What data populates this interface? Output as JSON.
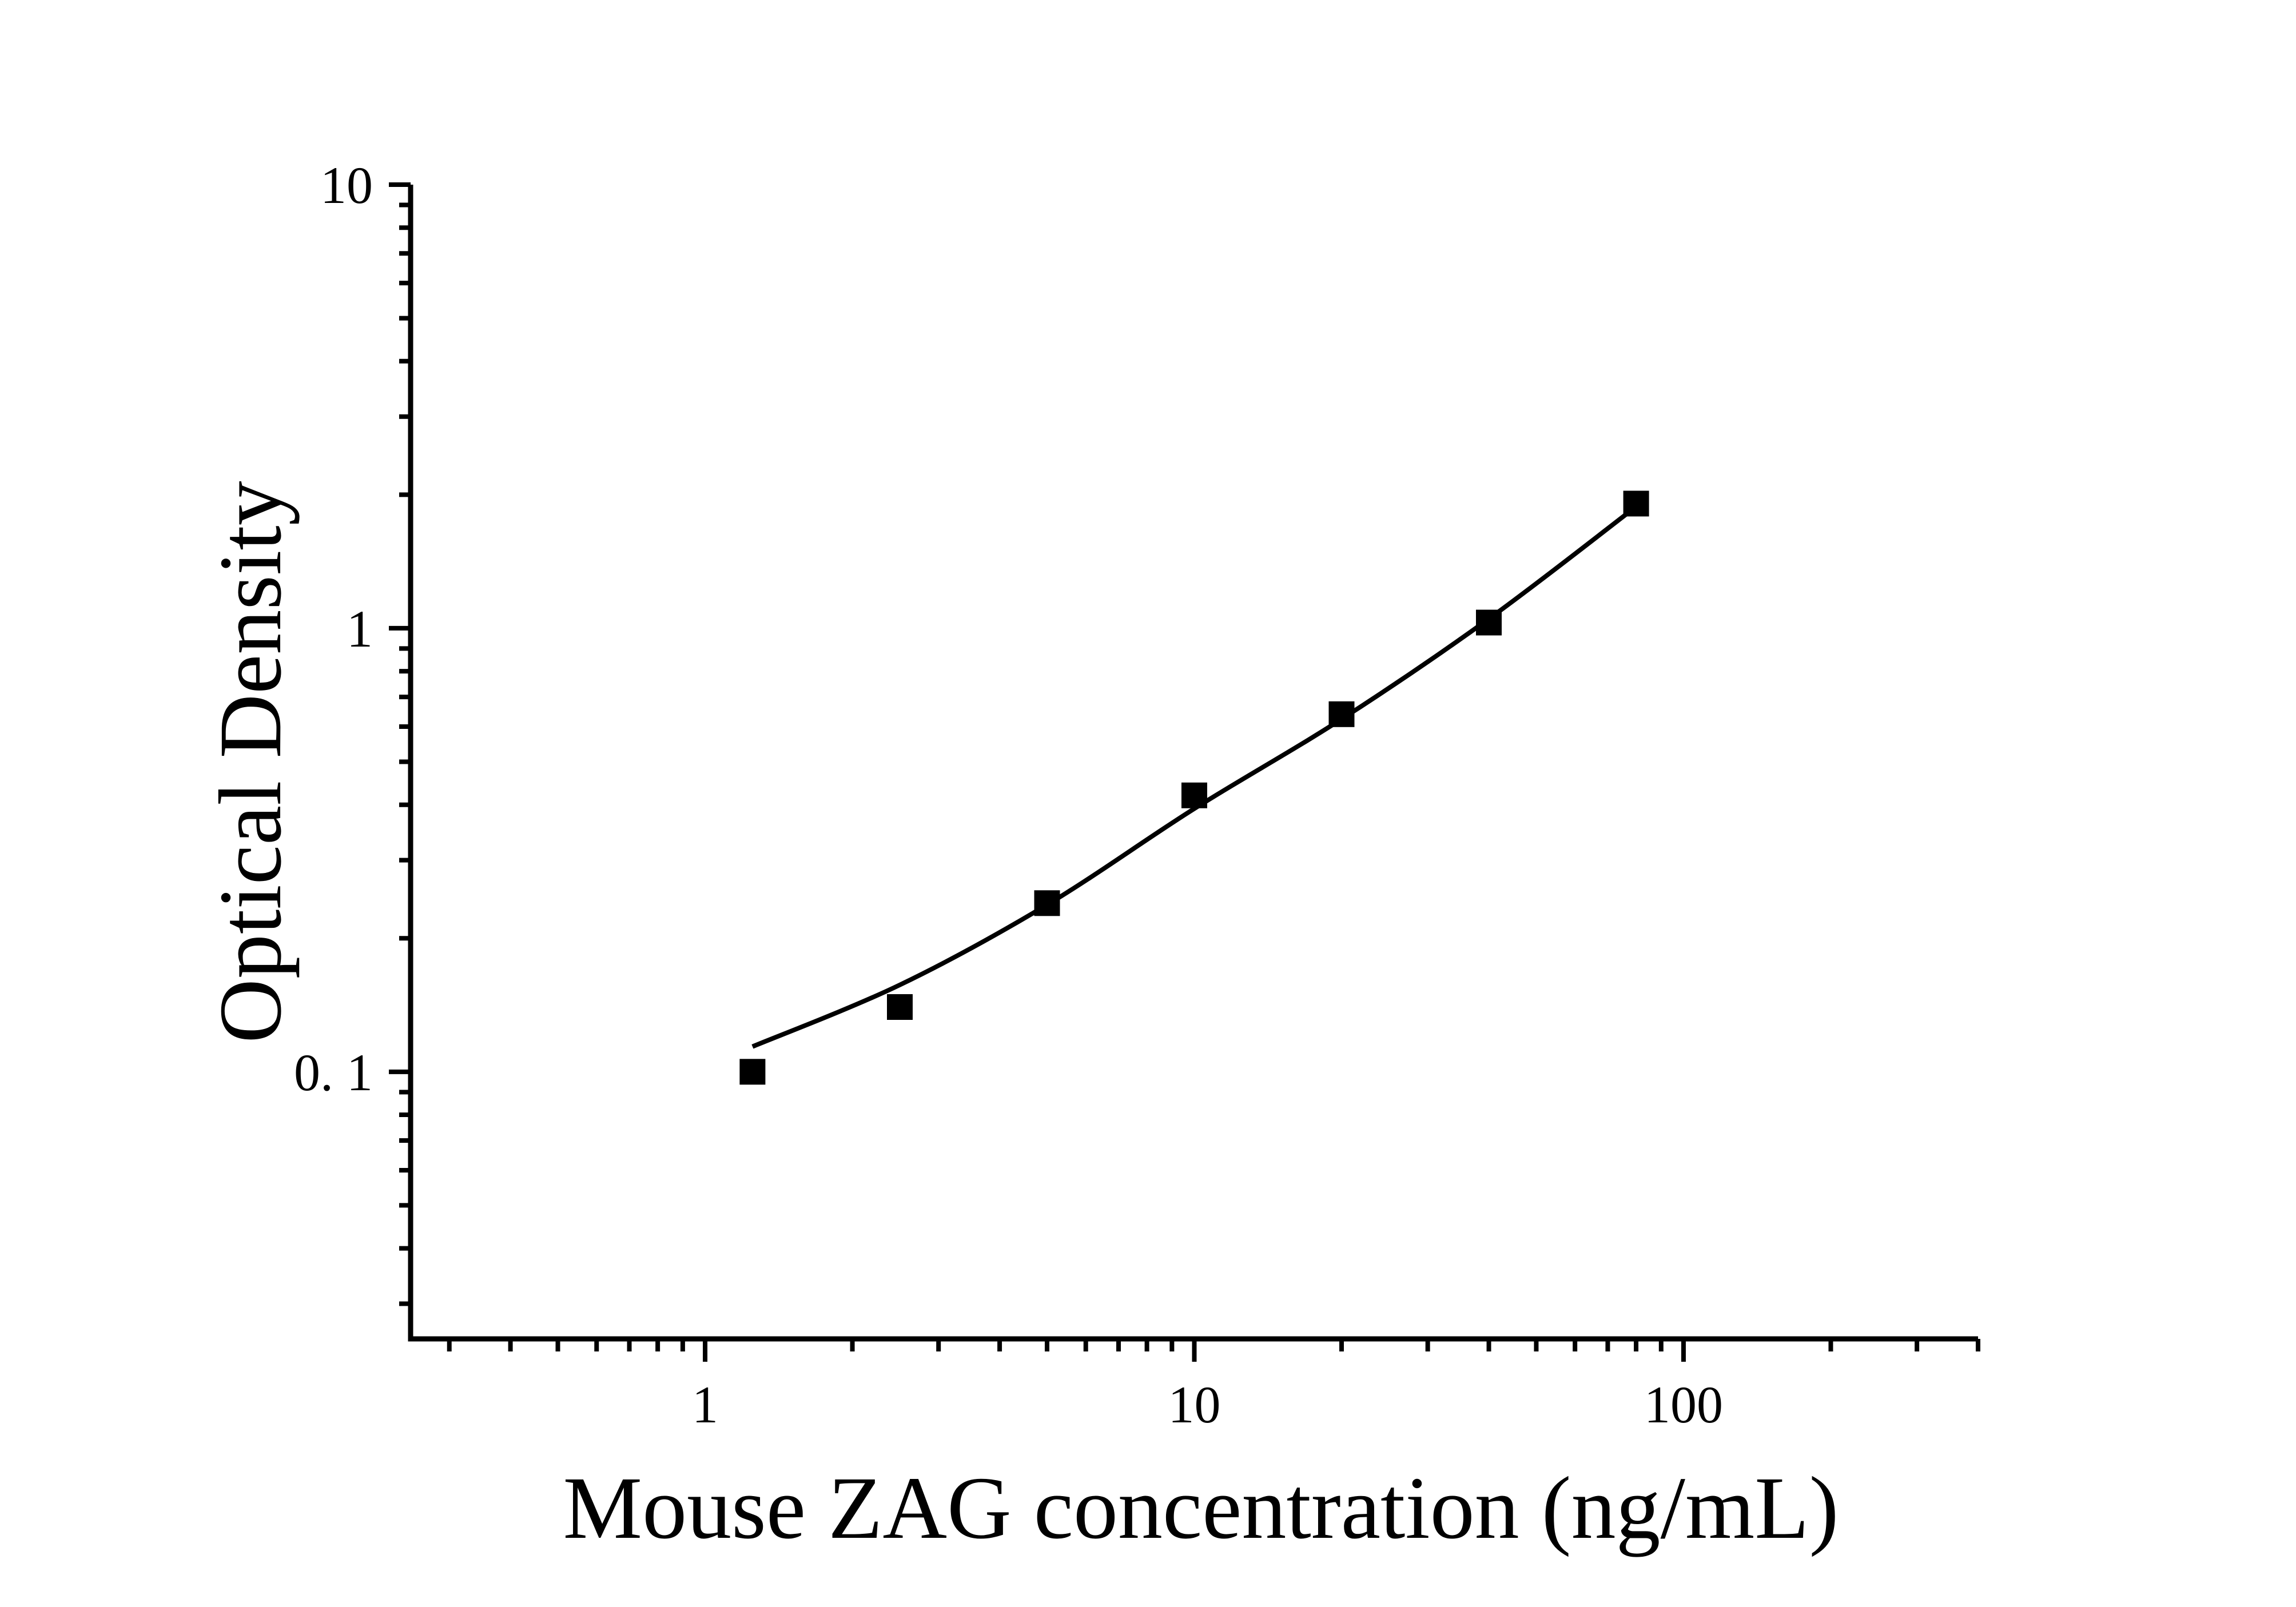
{
  "figure": {
    "background": "#ffffff"
  },
  "chart_data": {
    "type": "scatter",
    "title": "",
    "xlabel": "Mouse ZAG concentration (ng/mL)",
    "ylabel": "Optical Density",
    "x_scale": "log",
    "y_scale": "log",
    "xlim": [
      0.25,
      400
    ],
    "ylim": [
      0.025,
      10
    ],
    "grid": false,
    "legend": false,
    "colors": {
      "foreground": "#000000",
      "background": "#ffffff"
    },
    "x_ticks": {
      "major": [
        1,
        10,
        100
      ],
      "labels": [
        "1",
        "10",
        "100"
      ],
      "minor": [
        0.3,
        0.4,
        0.5,
        0.6,
        0.7,
        0.8,
        0.9,
        2,
        3,
        4,
        5,
        6,
        7,
        8,
        9,
        20,
        30,
        40,
        50,
        60,
        70,
        80,
        90,
        200,
        300,
        400
      ]
    },
    "y_ticks": {
      "major": [
        0.1,
        1,
        10
      ],
      "labels": [
        "0. 1",
        "1",
        "10"
      ],
      "minor": [
        0.03,
        0.04,
        0.05,
        0.06,
        0.07,
        0.08,
        0.09,
        0.2,
        0.3,
        0.4,
        0.5,
        0.6,
        0.7,
        0.8,
        0.9,
        2,
        3,
        4,
        5,
        6,
        7,
        8,
        9
      ]
    },
    "series": [
      {
        "name": "standard",
        "marker": "filled-square",
        "marker_size_px": 45,
        "points": [
          {
            "x": 1.25,
            "y": 0.1
          },
          {
            "x": 2.5,
            "y": 0.14
          },
          {
            "x": 5,
            "y": 0.24
          },
          {
            "x": 10,
            "y": 0.42
          },
          {
            "x": 20,
            "y": 0.64
          },
          {
            "x": 40,
            "y": 1.03
          },
          {
            "x": 80,
            "y": 1.91
          }
        ]
      }
    ],
    "fit_curve": {
      "anchors": [
        [
          1.25,
          0.114
        ],
        [
          2.5,
          0.157
        ],
        [
          5,
          0.238
        ],
        [
          10,
          0.392
        ],
        [
          20,
          0.624
        ],
        [
          40,
          1.05
        ],
        [
          80,
          1.88
        ]
      ]
    }
  }
}
